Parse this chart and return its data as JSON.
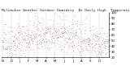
{
  "title": "Milwaukee Weather Outdoor Humidity  At Daily High  Temperature  (Past Year)",
  "background_color": "#ffffff",
  "plot_bg_color": "#ffffff",
  "grid_color": "#888888",
  "red_color": "#ff0000",
  "blue_color": "#0000ff",
  "ylim": [
    20,
    100
  ],
  "yticks": [
    20,
    30,
    40,
    50,
    60,
    70,
    80,
    90,
    100
  ],
  "n_points": 365,
  "title_fontsize": 3.2,
  "tick_fontsize": 2.8,
  "n_red": 365,
  "n_blue": 365,
  "dot_size": 0.6
}
